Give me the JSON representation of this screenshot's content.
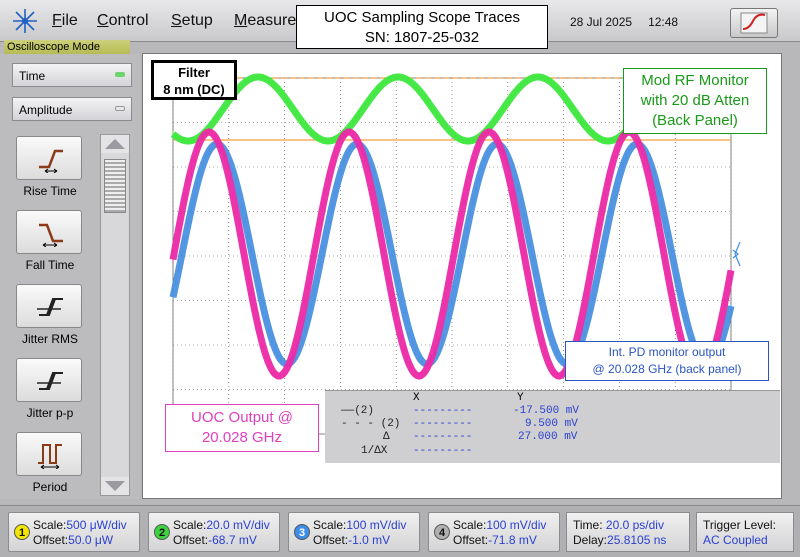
{
  "menubar": {
    "items": [
      {
        "label": "File",
        "underline": "F",
        "rest": "ile"
      },
      {
        "label": "Control",
        "underline": "C",
        "rest": "ontrol"
      },
      {
        "label": "Setup",
        "underline": "S",
        "rest": "etup"
      },
      {
        "label": "Measure",
        "underline": "M",
        "rest": "easure"
      }
    ],
    "date": "28 Jul 2025",
    "time": "12:48"
  },
  "title": {
    "line1": "UOC Sampling Scope Traces",
    "line2": "SN: 1807-25-032"
  },
  "mode": "Oscilloscope Mode",
  "selectors": {
    "time": "Time",
    "amplitude": "Amplitude"
  },
  "tools": [
    "Rise Time",
    "Fall Time",
    "Jitter RMS",
    "Jitter p-p",
    "Period"
  ],
  "callouts": {
    "filter_line1": "Filter",
    "filter_line2": "8 nm (DC)",
    "green_line1": "Mod RF Monitor",
    "green_line2": "with 20 dB Atten",
    "green_line3": "(Back Panel)",
    "blue_line1": "Int. PD monitor output",
    "blue_line2": "@ 20.028 GHz (back panel)",
    "magenta_line1": "UOC Output @",
    "magenta_line2": "20.028 GHz"
  },
  "readout": {
    "header_x": "X",
    "header_y": "Y",
    "rows": [
      {
        "marker": "——(2)",
        "x": "---------",
        "y": "-17.500 mV"
      },
      {
        "marker": "- - - (2)",
        "x": "---------",
        "y": "9.500 mV"
      },
      {
        "marker": "Δ",
        "x": "---------",
        "y": "27.000 mV"
      },
      {
        "marker": "1/ΔX",
        "x": "---------",
        "y": ""
      }
    ]
  },
  "channels": [
    {
      "num": "1",
      "color": "#f2e500",
      "scale_label": "Scale:",
      "scale": "500 μW/div",
      "offset_label": "Offset:",
      "offset": "50.0 μW"
    },
    {
      "num": "2",
      "color": "#3fd23f",
      "scale_label": "Scale:",
      "scale": "20.0 mV/div",
      "offset_label": "Offset:",
      "offset": "-68.7 mV"
    },
    {
      "num": "3",
      "color": "#3b8fe8",
      "scale_label": "Scale:",
      "scale": "100 mV/div",
      "offset_label": "Offset:",
      "offset": "-1.0 mV"
    },
    {
      "num": "4",
      "color": "#b0b0b0",
      "scale_label": "Scale:",
      "scale": "100 mV/div",
      "offset_label": "Offset:",
      "offset": "-71.8 mV"
    }
  ],
  "timebase": {
    "time_label": "Time:",
    "time": "20.0 ps/div",
    "delay_label": "Delay:",
    "delay": "25.8105 ns"
  },
  "trigger": {
    "label": "Trigger Level:",
    "value": "AC Coupled"
  },
  "colors": {
    "green_trace": "#3ee83e",
    "blue_trace": "#4a90e0",
    "magenta_trace": "#ec2aa6",
    "orange_marker": "#f0a040",
    "callout_green": "#1a9a1a",
    "callout_blue": "#2a55c0",
    "callout_magenta": "#e040c0"
  }
}
